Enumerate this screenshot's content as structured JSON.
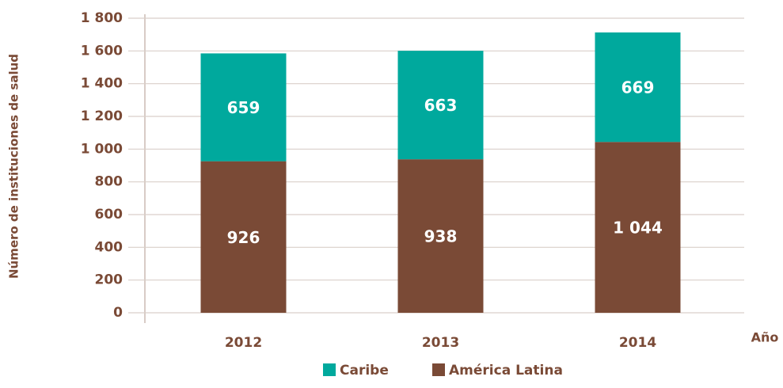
{
  "chart_data": {
    "type": "stacked_bar",
    "y_label": "Número de instituciones de salud",
    "x_label": "Año",
    "categories": [
      "2012",
      "2013",
      "2014"
    ],
    "series": [
      {
        "name": "América Latina",
        "color": "#7a4a36",
        "values": [
          926,
          938,
          1044
        ],
        "value_labels": [
          "926",
          "938",
          "1 044"
        ]
      },
      {
        "name": "Caribe",
        "color": "#00a99d",
        "values": [
          659,
          663,
          669
        ]
      }
    ],
    "ylim": [
      0,
      1800
    ],
    "yticks": [
      0,
      200,
      400,
      600,
      800,
      {
        "value": 1000,
        "label": "1 000"
      },
      {
        "value": 1200,
        "label": "1 200"
      },
      {
        "value": 1400,
        "label": "1 400"
      },
      {
        "value": 1600,
        "label": "1 600"
      },
      {
        "value": 1800,
        "label": "1 800"
      }
    ],
    "grid": true
  }
}
